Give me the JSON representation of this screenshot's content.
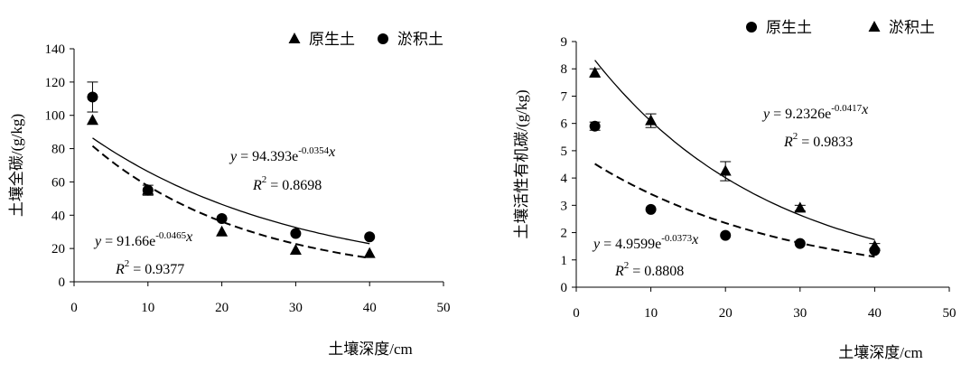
{
  "chart_data": [
    {
      "type": "scatter",
      "xlabel": "土壤深度/cm",
      "ylabel": "土壤全碳/(g/kg)",
      "xlim": [
        0,
        50
      ],
      "ylim": [
        0,
        140
      ],
      "xticks": [
        0,
        10,
        20,
        30,
        40,
        50
      ],
      "yticks": [
        0,
        20,
        40,
        60,
        80,
        100,
        120,
        140
      ],
      "legend_position": "top-right",
      "series": [
        {
          "name": "原生土",
          "marker": "triangle",
          "x": [
            2.5,
            10,
            20,
            30,
            40
          ],
          "y": [
            97,
            55,
            30,
            19,
            17
          ],
          "err": [
            0,
            0,
            0,
            0,
            0
          ],
          "fit": {
            "a": 94.393,
            "b": -0.0354,
            "style": "solid",
            "x_range": [
              2.5,
              40
            ],
            "eq_prefix": "y = 94.393e",
            "eq_exp": "-0.0354",
            "eq_suffix": "x",
            "r2_prefix": "R",
            "r2_value": " = 0.8698"
          }
        },
        {
          "name": "淤积土",
          "marker": "circle",
          "x": [
            2.5,
            10,
            20,
            30,
            40
          ],
          "y": [
            111,
            55,
            38,
            29,
            27
          ],
          "err": [
            9,
            3,
            0,
            0,
            0
          ],
          "fit": {
            "a": 91.66,
            "b": -0.0465,
            "style": "dashed",
            "x_range": [
              2.5,
              40
            ],
            "eq_prefix": "y = 91.66e",
            "eq_exp": "-0.0465",
            "eq_suffix": "x",
            "r2_prefix": "R",
            "r2_value": " = 0.9377"
          }
        }
      ]
    },
    {
      "type": "scatter",
      "xlabel": "土壤深度/cm",
      "ylabel": "土壤活性有机碳/(g/kg)",
      "xlim": [
        0,
        50
      ],
      "ylim": [
        0,
        9
      ],
      "xticks": [
        0,
        10,
        20,
        30,
        40,
        50
      ],
      "yticks": [
        0,
        1,
        2,
        3,
        4,
        5,
        6,
        7,
        8,
        9
      ],
      "legend_position": "top-right",
      "series": [
        {
          "name": "原生土",
          "marker": "circle",
          "x": [
            2.5,
            10,
            20,
            30,
            40
          ],
          "y": [
            5.9,
            2.85,
            1.9,
            1.6,
            1.35
          ],
          "err": [
            0.15,
            0,
            0,
            0,
            0
          ],
          "fit": {
            "a": 4.9599,
            "b": -0.0373,
            "style": "dashed",
            "x_range": [
              2.5,
              40
            ],
            "eq_prefix": "y = 4.9599e",
            "eq_exp": "-0.0373",
            "eq_suffix": "x",
            "r2_prefix": "R",
            "r2_value": " = 0.8808"
          }
        },
        {
          "name": "淤积土",
          "marker": "triangle",
          "x": [
            2.5,
            10,
            20,
            30,
            40
          ],
          "y": [
            7.85,
            6.1,
            4.25,
            2.9,
            1.5
          ],
          "err": [
            0.15,
            0.25,
            0.35,
            0.1,
            0.1
          ],
          "fit": {
            "a": 9.2326,
            "b": -0.0417,
            "style": "solid",
            "x_range": [
              2.5,
              40
            ],
            "eq_prefix": "y = 9.2326e",
            "eq_exp": "-0.0417",
            "eq_suffix": "x",
            "r2_prefix": "R",
            "r2_value": " = 0.9833"
          }
        }
      ]
    }
  ]
}
